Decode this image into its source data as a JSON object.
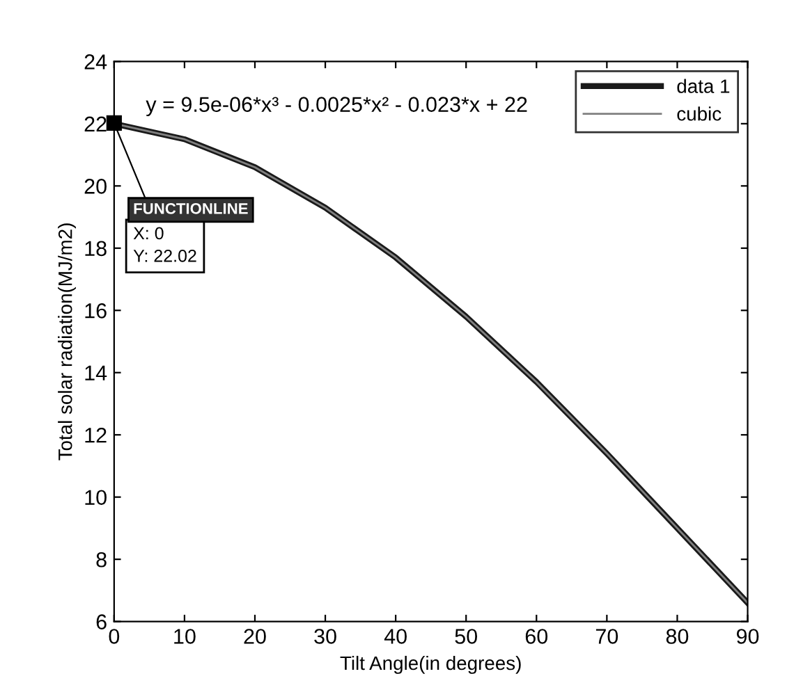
{
  "chart_data": {
    "type": "line",
    "xlabel": "Tilt Angle(in degrees)",
    "ylabel": "Total solar radiation(MJ/m2)",
    "x": [
      0,
      10,
      20,
      30,
      40,
      50,
      60,
      70,
      80,
      90
    ],
    "series": [
      {
        "name": "data 1",
        "color": "#1a1a1a",
        "values": [
          22.0,
          21.5,
          20.6,
          19.3,
          17.7,
          15.8,
          13.7,
          11.4,
          9.0,
          6.6
        ]
      },
      {
        "name": "cubic",
        "color": "#808080",
        "values": [
          22.0,
          21.5,
          20.6,
          19.3,
          17.7,
          15.8,
          13.7,
          11.4,
          9.0,
          6.6
        ]
      }
    ],
    "xlim": [
      0,
      90
    ],
    "xticks": [
      0,
      10,
      20,
      30,
      40,
      50,
      60,
      70,
      80,
      90
    ],
    "ylim": [
      6,
      24
    ],
    "yticks": [
      6,
      8,
      10,
      12,
      14,
      16,
      18,
      20,
      22,
      24
    ],
    "grid": false,
    "legend": "top right",
    "marker": "none",
    "line_style": "solid",
    "annotations": [
      "y = 9.5e-06*x³ - 0.0025*x² - 0.023*x + 22",
      "FUNCTIONLINE",
      {
        "text": "X: 0\nY: 22.02",
        "x": 0,
        "y": 22.02
      }
    ]
  }
}
